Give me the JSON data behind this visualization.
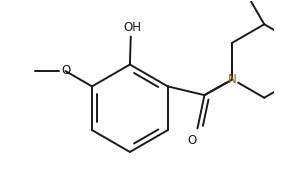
{
  "background_color": "#ffffff",
  "line_color": "#1a1a1a",
  "n_color": "#8B6914",
  "o_color": "#1a1a1a",
  "line_width": 1.4,
  "font_size": 8.5,
  "figsize": [
    2.86,
    1.85
  ],
  "dpi": 100,
  "oh_label": "OH",
  "n_label": "N",
  "o_label": "O"
}
